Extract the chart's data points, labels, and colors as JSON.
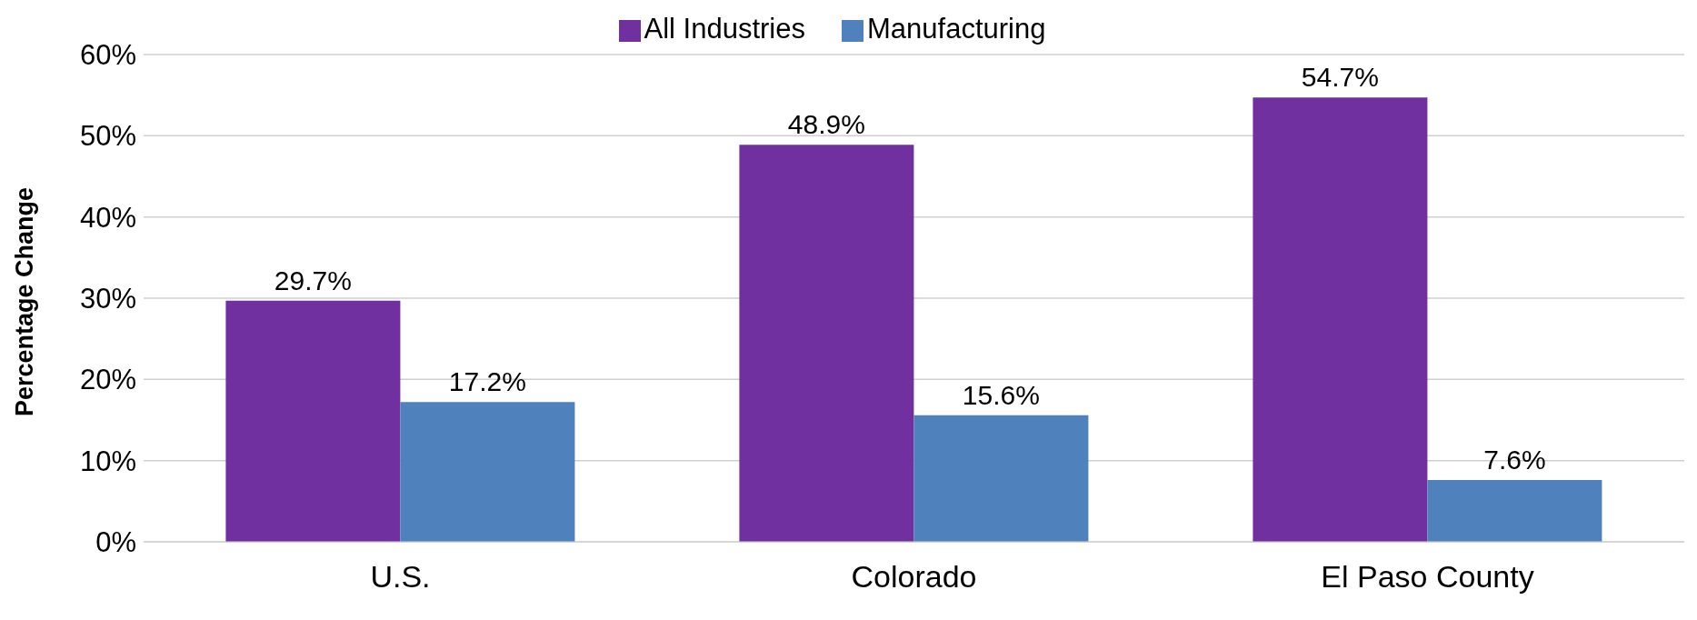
{
  "chart_data": {
    "type": "bar",
    "ylabel": "Percentage Change",
    "categories": [
      "U.S.",
      "Colorado",
      "El Paso County"
    ],
    "series": [
      {
        "name": "All Industries",
        "color": "#7030a0",
        "values": [
          29.7,
          48.9,
          54.7
        ],
        "value_labels": [
          "29.7%",
          "48.9%",
          "54.7%"
        ]
      },
      {
        "name": "Manufacturing",
        "color": "#4f81bd",
        "values": [
          17.2,
          15.6,
          7.6
        ],
        "value_labels": [
          "17.2%",
          "15.6%",
          "7.6%"
        ]
      }
    ],
    "ylim": [
      0,
      60
    ],
    "yticks": [
      {
        "value": 0,
        "label": "0%"
      },
      {
        "value": 10,
        "label": "10%"
      },
      {
        "value": 20,
        "label": "20%"
      },
      {
        "value": 30,
        "label": "30%"
      },
      {
        "value": 40,
        "label": "40%"
      },
      {
        "value": 50,
        "label": "50%"
      },
      {
        "value": 60,
        "label": "60%"
      }
    ],
    "grid": "y",
    "legend": "top"
  }
}
